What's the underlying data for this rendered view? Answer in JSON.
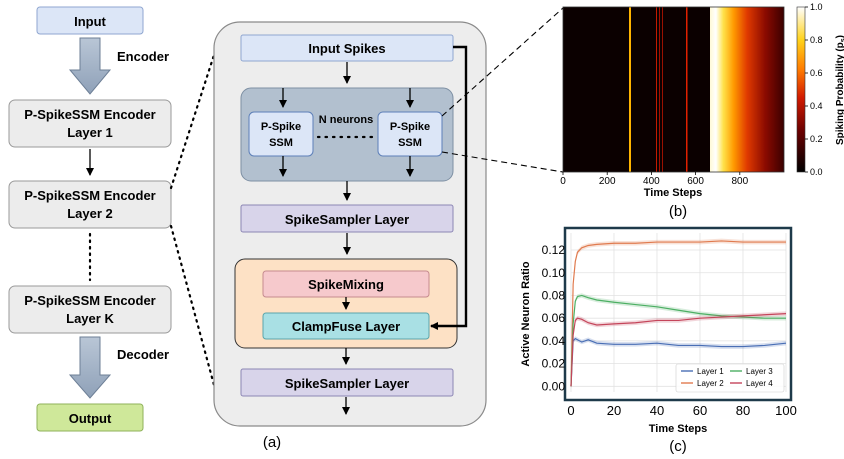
{
  "left_stack": {
    "input": "Input",
    "encoder_label": "Encoder",
    "layer1": [
      "P-SpikeSSM Encoder",
      "Layer 1"
    ],
    "layer2": [
      "P-SpikeSSM Encoder",
      "Layer 2"
    ],
    "layerK": [
      "P-SpikeSSM Encoder",
      "Layer K"
    ],
    "decoder_label": "Decoder",
    "output": "Output"
  },
  "block": {
    "input_spikes": "Input Spikes",
    "neuron_left": [
      "P-Spike",
      "SSM"
    ],
    "neuron_right": [
      "P-Spike",
      "SSM"
    ],
    "n_neurons": "N neurons",
    "sampler1": "SpikeSampler Layer",
    "spike_mixing": "SpikeMixing",
    "clampfuse": "ClampFuse Layer",
    "sampler2": "SpikeSampler Layer"
  },
  "captions": {
    "a": "(a)",
    "b": "(b)",
    "c": "(c)"
  },
  "heatmap": {
    "xlabel": "Time Steps",
    "xticks": [
      "0",
      "200",
      "400",
      "600",
      "800"
    ],
    "colorbar_label": "Spiking Probability (p",
    "colorbar_sub": "s",
    "colorbar_close": ")",
    "colorbar_ticks": [
      "0.0",
      "0.2",
      "0.4",
      "0.6",
      "0.8",
      "1.0"
    ]
  },
  "chart_data": {
    "type": "line",
    "xlabel": "Time Steps",
    "ylabel": "Active Neuron Ratio",
    "xlim": [
      0,
      100
    ],
    "ylim": [
      -0.005,
      0.135
    ],
    "xticks": [
      0,
      20,
      40,
      60,
      80,
      100
    ],
    "yticks": [
      0.0,
      0.02,
      0.04,
      0.06,
      0.08,
      0.1,
      0.12
    ],
    "grid": true,
    "legend_position": "bottom-right",
    "series": [
      {
        "name": "Layer 1",
        "color": "#4a6fb5",
        "x": [
          0,
          1,
          2,
          3,
          5,
          8,
          12,
          20,
          30,
          40,
          50,
          60,
          70,
          80,
          90,
          100
        ],
        "y": [
          0.0,
          0.04,
          0.042,
          0.041,
          0.039,
          0.041,
          0.038,
          0.037,
          0.037,
          0.038,
          0.036,
          0.036,
          0.035,
          0.035,
          0.036,
          0.038
        ]
      },
      {
        "name": "Layer 2",
        "color": "#e07b4f",
        "x": [
          0,
          1,
          2,
          3,
          5,
          8,
          12,
          20,
          30,
          40,
          50,
          60,
          70,
          80,
          90,
          100
        ],
        "y": [
          0.0,
          0.09,
          0.11,
          0.118,
          0.122,
          0.124,
          0.125,
          0.126,
          0.126,
          0.127,
          0.127,
          0.127,
          0.128,
          0.127,
          0.127,
          0.127
        ]
      },
      {
        "name": "Layer 3",
        "color": "#4caf63",
        "x": [
          0,
          1,
          2,
          3,
          5,
          8,
          12,
          20,
          30,
          40,
          50,
          60,
          70,
          80,
          90,
          100
        ],
        "y": [
          0.0,
          0.055,
          0.075,
          0.079,
          0.08,
          0.078,
          0.076,
          0.074,
          0.072,
          0.07,
          0.067,
          0.064,
          0.062,
          0.061,
          0.06,
          0.06
        ]
      },
      {
        "name": "Layer 4",
        "color": "#c4455a",
        "x": [
          0,
          1,
          2,
          3,
          5,
          8,
          12,
          20,
          30,
          40,
          50,
          60,
          70,
          80,
          90,
          100
        ],
        "y": [
          0.0,
          0.045,
          0.058,
          0.06,
          0.059,
          0.056,
          0.054,
          0.055,
          0.056,
          0.058,
          0.058,
          0.06,
          0.061,
          0.062,
          0.063,
          0.064
        ]
      }
    ]
  }
}
